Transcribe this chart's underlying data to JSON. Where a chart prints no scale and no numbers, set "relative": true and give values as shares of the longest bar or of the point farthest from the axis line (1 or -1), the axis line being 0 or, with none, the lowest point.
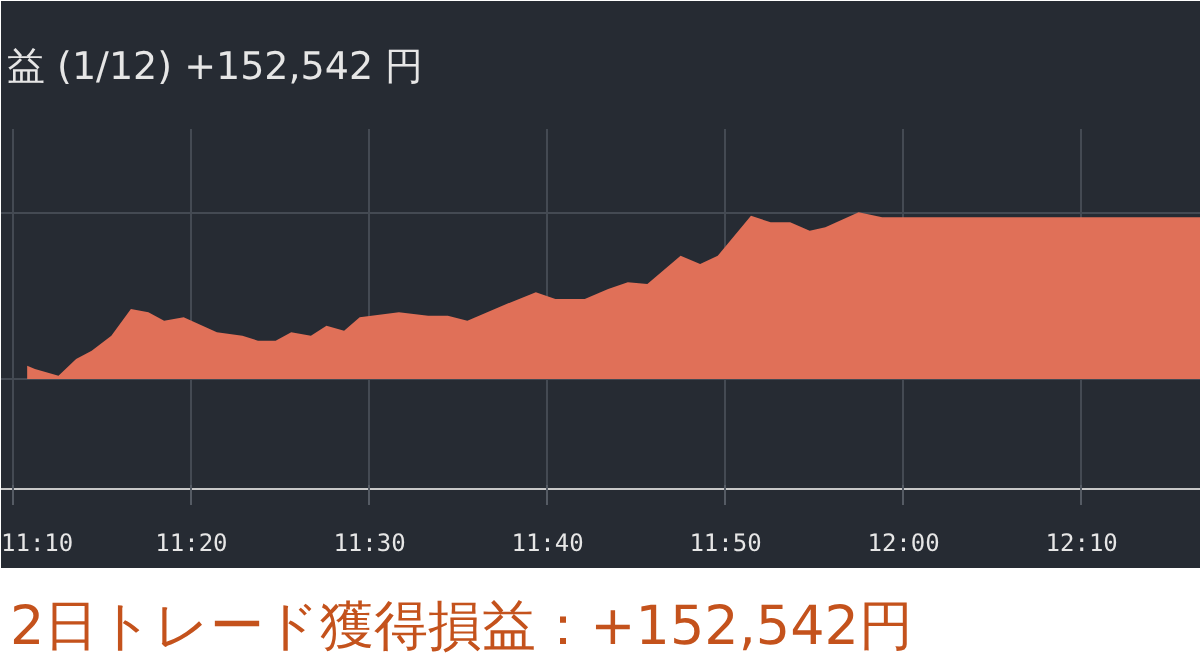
{
  "chart_data": {
    "type": "area",
    "title": "益 (1/12) +152,542 円",
    "annotations": [
      "2日トレード獲得損益：+152,542円"
    ],
    "relative": true,
    "x": [
      11.1795,
      11.1868,
      11.2088,
      11.2253,
      11.2399,
      11.2583,
      11.2766,
      11.293,
      11.3077,
      11.326,
      11.3571,
      11.381,
      11.3956,
      11.4121,
      11.4267,
      11.4451,
      11.4597,
      11.4762,
      11.4908,
      11.5275,
      11.5549,
      11.5733,
      11.5916,
      11.6282,
      11.6557,
      11.674,
      11.7015,
      11.7234,
      11.7418,
      11.7601,
      11.7912,
      11.8095,
      11.826,
      11.8571,
      11.8755,
      11.8938,
      11.9121,
      11.9267,
      11.9579,
      11.9799,
      12.2784
    ],
    "series": [
      {
        "color": "#e07058",
        "values": [
          0.08,
          0.06,
          0.02,
          0.12,
          0.17,
          0.26,
          0.42,
          0.4,
          0.35,
          0.37,
          0.28,
          0.26,
          0.23,
          0.23,
          0.28,
          0.26,
          0.32,
          0.29,
          0.37,
          0.4,
          0.38,
          0.38,
          0.35,
          0.45,
          0.52,
          0.48,
          0.48,
          0.54,
          0.58,
          0.57,
          0.74,
          0.69,
          0.74,
          0.98,
          0.94,
          0.94,
          0.89,
          0.91,
          1.0,
          0.97,
          0.97
        ]
      }
    ],
    "xlim": [
      11.155,
      12.2784
    ],
    "xticks": [
      {
        "value": 11.1667,
        "label": "11:10"
      },
      {
        "value": 11.3333,
        "label": "11:20"
      },
      {
        "value": 11.5,
        "label": "11:30"
      },
      {
        "value": 11.6667,
        "label": "11:40"
      },
      {
        "value": 11.8333,
        "label": "11:50"
      },
      {
        "value": 12.0,
        "label": "12:00"
      },
      {
        "value": 12.1667,
        "label": "12:10"
      }
    ],
    "grid": true
  }
}
